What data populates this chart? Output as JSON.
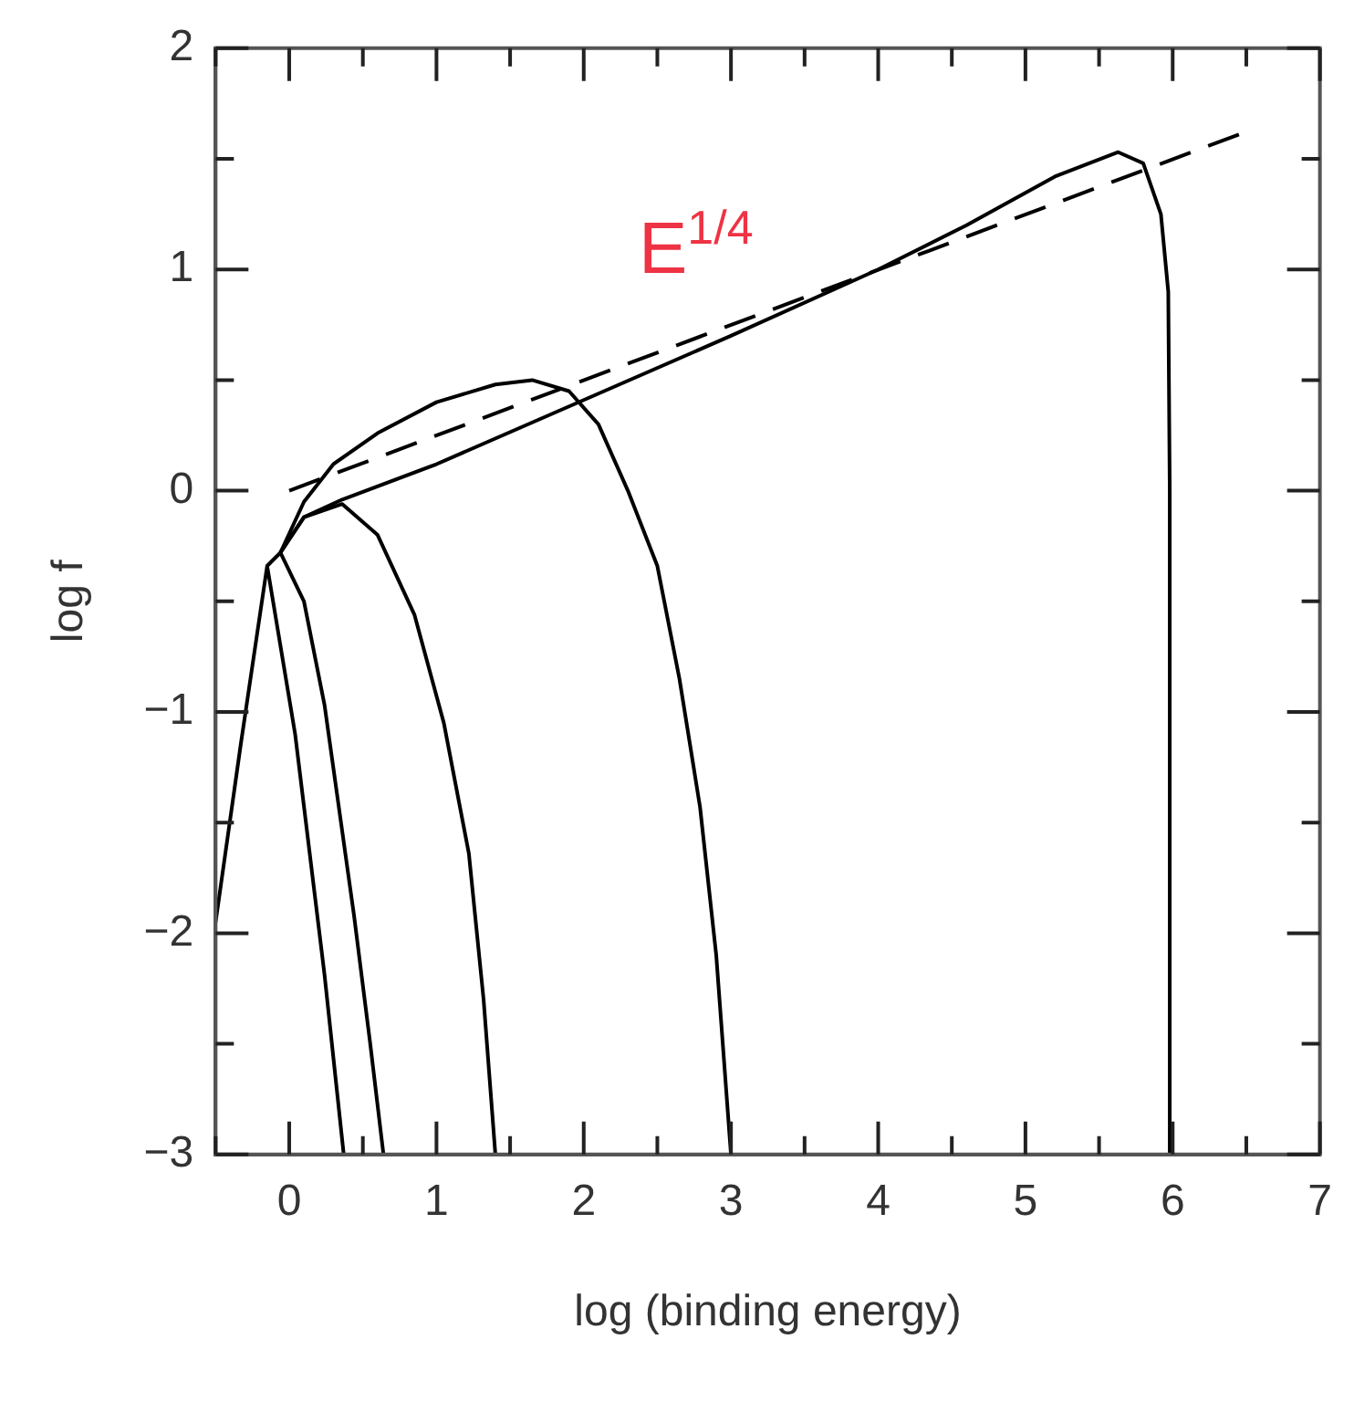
{
  "chart_data": {
    "type": "line",
    "xlabel": "log (binding energy)",
    "ylabel": "log f",
    "xlim": [
      -0.5,
      7
    ],
    "ylim": [
      -3,
      2
    ],
    "xticks": [
      {
        "value": -0.5,
        "label": null
      },
      0,
      {
        "value": 0.5,
        "label": null
      },
      1,
      {
        "value": 1.5,
        "label": null
      },
      2,
      {
        "value": 2.5,
        "label": null
      },
      3,
      {
        "value": 3.5,
        "label": null
      },
      4,
      {
        "value": 4.5,
        "label": null
      },
      5,
      {
        "value": 5.5,
        "label": null
      },
      6,
      {
        "value": 6.5,
        "label": null
      },
      7
    ],
    "yticks": [
      {
        "value": -3,
        "label": "−3"
      },
      {
        "value": -2.5,
        "label": null
      },
      {
        "value": -2,
        "label": "−2"
      },
      {
        "value": -1.5,
        "label": null
      },
      {
        "value": -1,
        "label": "−1"
      },
      {
        "value": -0.5,
        "label": null
      },
      0,
      {
        "value": 0.5,
        "label": null
      },
      1,
      {
        "value": 1.5,
        "label": null
      },
      2
    ],
    "grid": false,
    "legend": false,
    "marker": "none",
    "annotations": [
      "E$^{1/4}$"
    ],
    "series": [
      {
        "color": "#000000",
        "x": [
          -0.5,
          -0.33,
          -0.15,
          0.04,
          0.24,
          0.37
        ],
        "values": [
          -1.95,
          -1.15,
          -0.34,
          -1.1,
          -2.19,
          -3
        ]
      },
      {
        "color": "#000000",
        "x": [
          -0.15,
          -0.06,
          0.1,
          0.24,
          0.44,
          0.55,
          0.64
        ],
        "values": [
          -0.34,
          -0.28,
          -0.5,
          -0.97,
          -1.92,
          -2.5,
          -3
        ]
      },
      {
        "color": "#000000",
        "x": [
          -0.06,
          0.1,
          0.36,
          0.6,
          0.85,
          1.05,
          1.22,
          1.32,
          1.4
        ],
        "values": [
          -0.28,
          -0.12,
          -0.06,
          -0.2,
          -0.56,
          -1.05,
          -1.64,
          -2.3,
          -3
        ]
      },
      {
        "color": "#000000",
        "x": [
          -0.06,
          0.1,
          0.3,
          0.6,
          1.0,
          1.4,
          1.65,
          1.9,
          2.1,
          2.3,
          2.5,
          2.65,
          2.79,
          2.9,
          3.0
        ],
        "values": [
          -0.28,
          -0.05,
          0.12,
          0.26,
          0.4,
          0.48,
          0.5,
          0.45,
          0.3,
          0.0,
          -0.34,
          -0.85,
          -1.43,
          -2.1,
          -3
        ]
      },
      {
        "color": "#000000",
        "x": [
          -0.06,
          0.1,
          0.36,
          1,
          2,
          3,
          4,
          4.6,
          5.2,
          5.63,
          5.8,
          5.92,
          5.97,
          5.98,
          5.98
        ],
        "values": [
          -0.28,
          -0.12,
          -0.04,
          0.12,
          0.41,
          0.7,
          1.0,
          1.2,
          1.42,
          1.53,
          1.48,
          1.25,
          0.9,
          0,
          -3
        ]
      },
      {
        "color": "#000000",
        "line_style": "dashed",
        "x": [
          0,
          6.45
        ],
        "values": [
          0,
          1.61
        ]
      }
    ]
  }
}
